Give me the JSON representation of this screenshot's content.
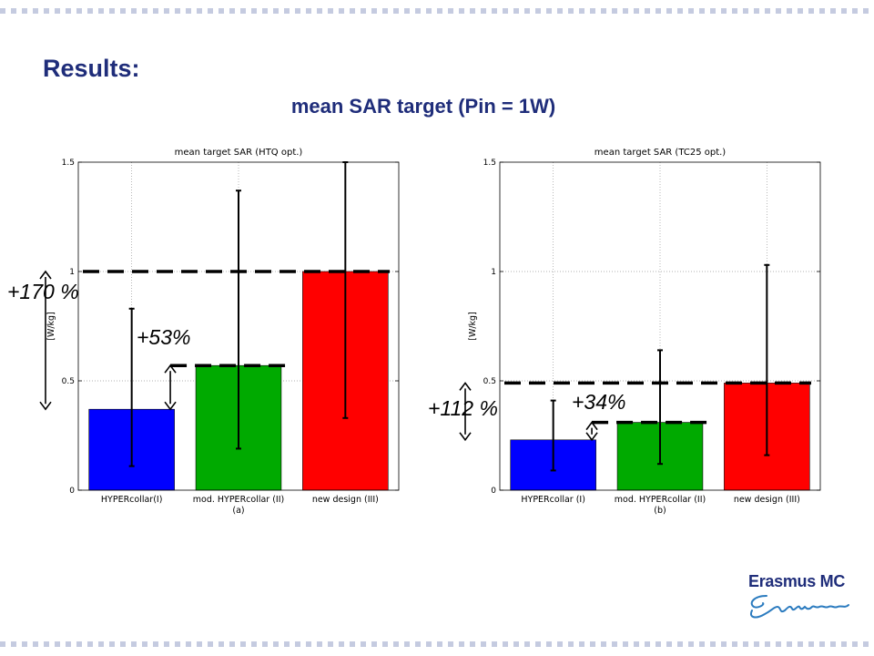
{
  "title": "Results:",
  "subtitle": "mean SAR target (Pin = 1W)",
  "colors": {
    "title": "#1f2d7a",
    "bar_blue": "#0000ff",
    "bar_green": "#00aa00",
    "bar_red": "#ff0000",
    "frame_dots": "#c5cbe0"
  },
  "logo": {
    "text": "Erasmus MC",
    "signature": "Erafmus"
  },
  "chart_data": [
    {
      "type": "bar",
      "title": "mean target SAR (HTQ opt.)",
      "ylabel": "[W/kg]",
      "xlabel": "(a)",
      "categories": [
        "HYPERcollar(I)",
        "mod. HYPERcollar (II)",
        "new design (III)"
      ],
      "values": [
        0.37,
        0.57,
        1.0
      ],
      "error_low": [
        0.11,
        0.19,
        0.33
      ],
      "error_high": [
        0.83,
        1.37,
        1.5
      ],
      "ylim": [
        0,
        1.5
      ],
      "yticks": [
        "0",
        "0.5",
        "1",
        "1.5"
      ],
      "grid": true,
      "annotations": [
        "+170 %",
        "+53%"
      ]
    },
    {
      "type": "bar",
      "title": "mean target SAR (TC25 opt.)",
      "ylabel": "[W/kg]",
      "xlabel": "(b)",
      "categories": [
        "HYPERcollar (I)",
        "mod. HYPERcollar (II)",
        "new design (III)"
      ],
      "values": [
        0.23,
        0.31,
        0.49
      ],
      "error_low": [
        0.09,
        0.12,
        0.16
      ],
      "error_high": [
        0.41,
        0.64,
        1.03
      ],
      "ylim": [
        0,
        1.5
      ],
      "yticks": [
        "0",
        "0.5",
        "1",
        "1.5"
      ],
      "grid": true,
      "annotations": [
        "+112 %",
        "+34%"
      ]
    }
  ]
}
